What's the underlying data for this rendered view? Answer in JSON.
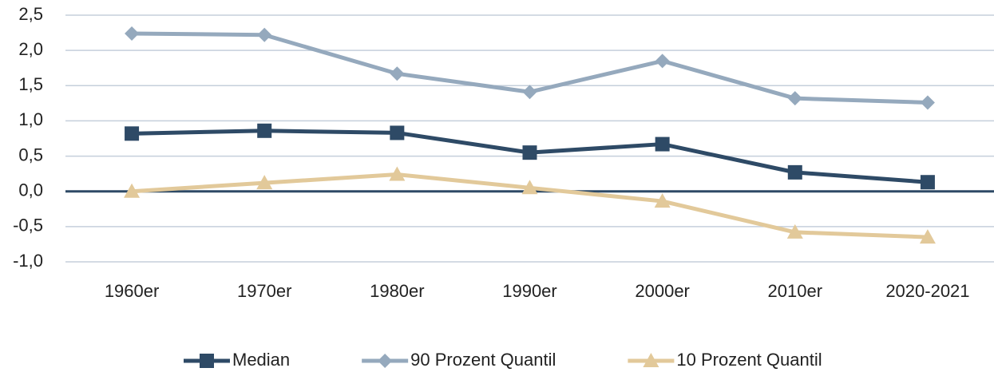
{
  "chart_data": {
    "type": "line",
    "categories": [
      "1960er",
      "1970er",
      "1980er",
      "1990er",
      "2000er",
      "2010er",
      "2020-2021"
    ],
    "series": [
      {
        "name": "Median",
        "color": "#2e4a66",
        "marker": "square",
        "values": [
          0.82,
          0.86,
          0.83,
          0.55,
          0.67,
          0.27,
          0.13
        ]
      },
      {
        "name": "90 Prozent Quantil",
        "color": "#95a9bd",
        "marker": "diamond",
        "values": [
          2.24,
          2.22,
          1.67,
          1.41,
          1.85,
          1.32,
          1.26
        ]
      },
      {
        "name": "10 Prozent Quantil",
        "color": "#e2c99a",
        "marker": "triangle",
        "values": [
          0.0,
          0.12,
          0.24,
          0.05,
          -0.14,
          -0.58,
          -0.65
        ]
      }
    ],
    "ylim": [
      -1.0,
      2.5
    ],
    "yticks": [
      {
        "value": -1.0,
        "label": "-1,0"
      },
      {
        "value": -0.5,
        "label": "-0,5"
      },
      {
        "value": 0.0,
        "label": "0,0"
      },
      {
        "value": 0.5,
        "label": "0,5"
      },
      {
        "value": 1.0,
        "label": "1,0"
      },
      {
        "value": 1.5,
        "label": "1,5"
      },
      {
        "value": 2.0,
        "label": "2,0"
      },
      {
        "value": 2.5,
        "label": "2,5"
      }
    ],
    "grid": true,
    "legend": "bottom"
  }
}
